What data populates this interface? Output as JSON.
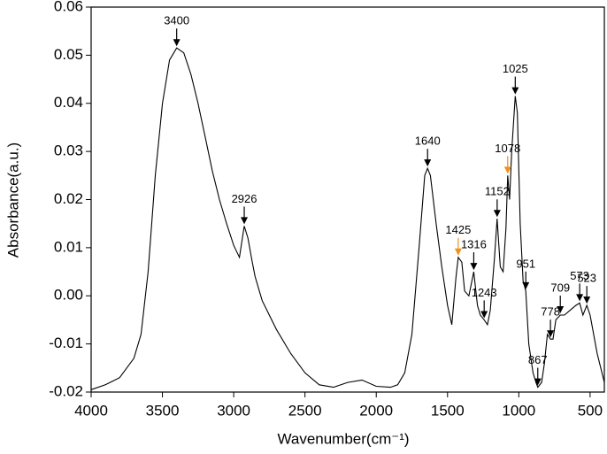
{
  "chart_data": {
    "type": "line",
    "xlabel": "Wavenumber(cm⁻¹)",
    "ylabel": "Absorbance(a.u.)",
    "color": "#000000",
    "x": [
      4000,
      3900,
      3800,
      3700,
      3650,
      3600,
      3550,
      3500,
      3450,
      3400,
      3350,
      3300,
      3250,
      3200,
      3150,
      3100,
      3050,
      3000,
      2960,
      2926,
      2900,
      2870,
      2850,
      2800,
      2700,
      2600,
      2500,
      2400,
      2300,
      2200,
      2100,
      2000,
      1900,
      1850,
      1800,
      1750,
      1700,
      1660,
      1640,
      1620,
      1580,
      1540,
      1500,
      1470,
      1440,
      1425,
      1400,
      1380,
      1350,
      1316,
      1290,
      1270,
      1243,
      1220,
      1200,
      1170,
      1152,
      1130,
      1110,
      1090,
      1078,
      1065,
      1050,
      1025,
      1010,
      990,
      970,
      960,
      951,
      930,
      900,
      880,
      867,
      840,
      820,
      800,
      778,
      760,
      740,
      709,
      680,
      640,
      600,
      573,
      550,
      523,
      500,
      450,
      400
    ],
    "values": [
      -0.0195,
      -0.0185,
      -0.017,
      -0.013,
      -0.008,
      0.005,
      0.025,
      0.04,
      0.049,
      0.0515,
      0.0505,
      0.046,
      0.04,
      0.033,
      0.026,
      0.02,
      0.015,
      0.0105,
      0.008,
      0.0145,
      0.012,
      0.007,
      0.004,
      -0.001,
      -0.007,
      -0.012,
      -0.016,
      -0.0185,
      -0.019,
      -0.018,
      -0.0175,
      -0.0188,
      -0.019,
      -0.0185,
      -0.016,
      -0.008,
      0.01,
      0.025,
      0.0265,
      0.025,
      0.015,
      0.006,
      -0.002,
      -0.006,
      0.004,
      0.008,
      0.007,
      0.001,
      0,
      0.005,
      -0.002,
      -0.004,
      -0.005,
      -0.006,
      -0.003,
      0.008,
      0.016,
      0.006,
      0.005,
      0.014,
      0.025,
      0.02,
      0.03,
      0.0415,
      0.038,
      0.015,
      0.003,
      0.002,
      0.001,
      -0.01,
      -0.016,
      -0.018,
      -0.019,
      -0.018,
      -0.014,
      -0.008,
      -0.009,
      -0.009,
      -0.005,
      -0.004,
      -0.004,
      -0.003,
      -0.002,
      -0.0015,
      -0.004,
      -0.002,
      -0.004,
      -0.012,
      -0.018
    ],
    "xlim": [
      4000,
      400
    ],
    "ylim": [
      -0.02,
      0.06
    ],
    "xticks": [
      4000,
      3500,
      3000,
      2500,
      2000,
      1500,
      1000,
      500
    ],
    "yticks": [
      0.06,
      0.05,
      0.04,
      0.03,
      0.02,
      0.01,
      {
        "value": 0,
        "label": "0.00"
      },
      -0.01,
      -0.02
    ],
    "annotations": [
      {
        "text": "3400",
        "x": 3400,
        "color": "#000000"
      },
      {
        "text": "2926",
        "x": 2926,
        "color": "#000000"
      },
      {
        "text": "1640",
        "x": 1640,
        "color": "#000000"
      },
      {
        "text": "1425",
        "x": 1425,
        "color": "#f0901e"
      },
      {
        "text": "1316",
        "x": 1316,
        "color": "#000000"
      },
      {
        "text": "1243",
        "x": 1243,
        "color": "#000000"
      },
      {
        "text": "1152",
        "x": 1152,
        "color": "#000000"
      },
      {
        "text": "1078",
        "x": 1078,
        "color": "#f0901e"
      },
      {
        "text": "1025",
        "x": 1025,
        "color": "#000000"
      },
      {
        "text": "951",
        "x": 951,
        "color": "#000000"
      },
      {
        "text": "867",
        "x": 867,
        "color": "#000000"
      },
      {
        "text": "778",
        "x": 778,
        "color": "#000000"
      },
      {
        "text": "709",
        "x": 709,
        "color": "#000000"
      },
      {
        "text": "573",
        "x": 573,
        "color": "#000000"
      },
      {
        "text": "523",
        "x": 523,
        "color": "#000000"
      }
    ]
  }
}
